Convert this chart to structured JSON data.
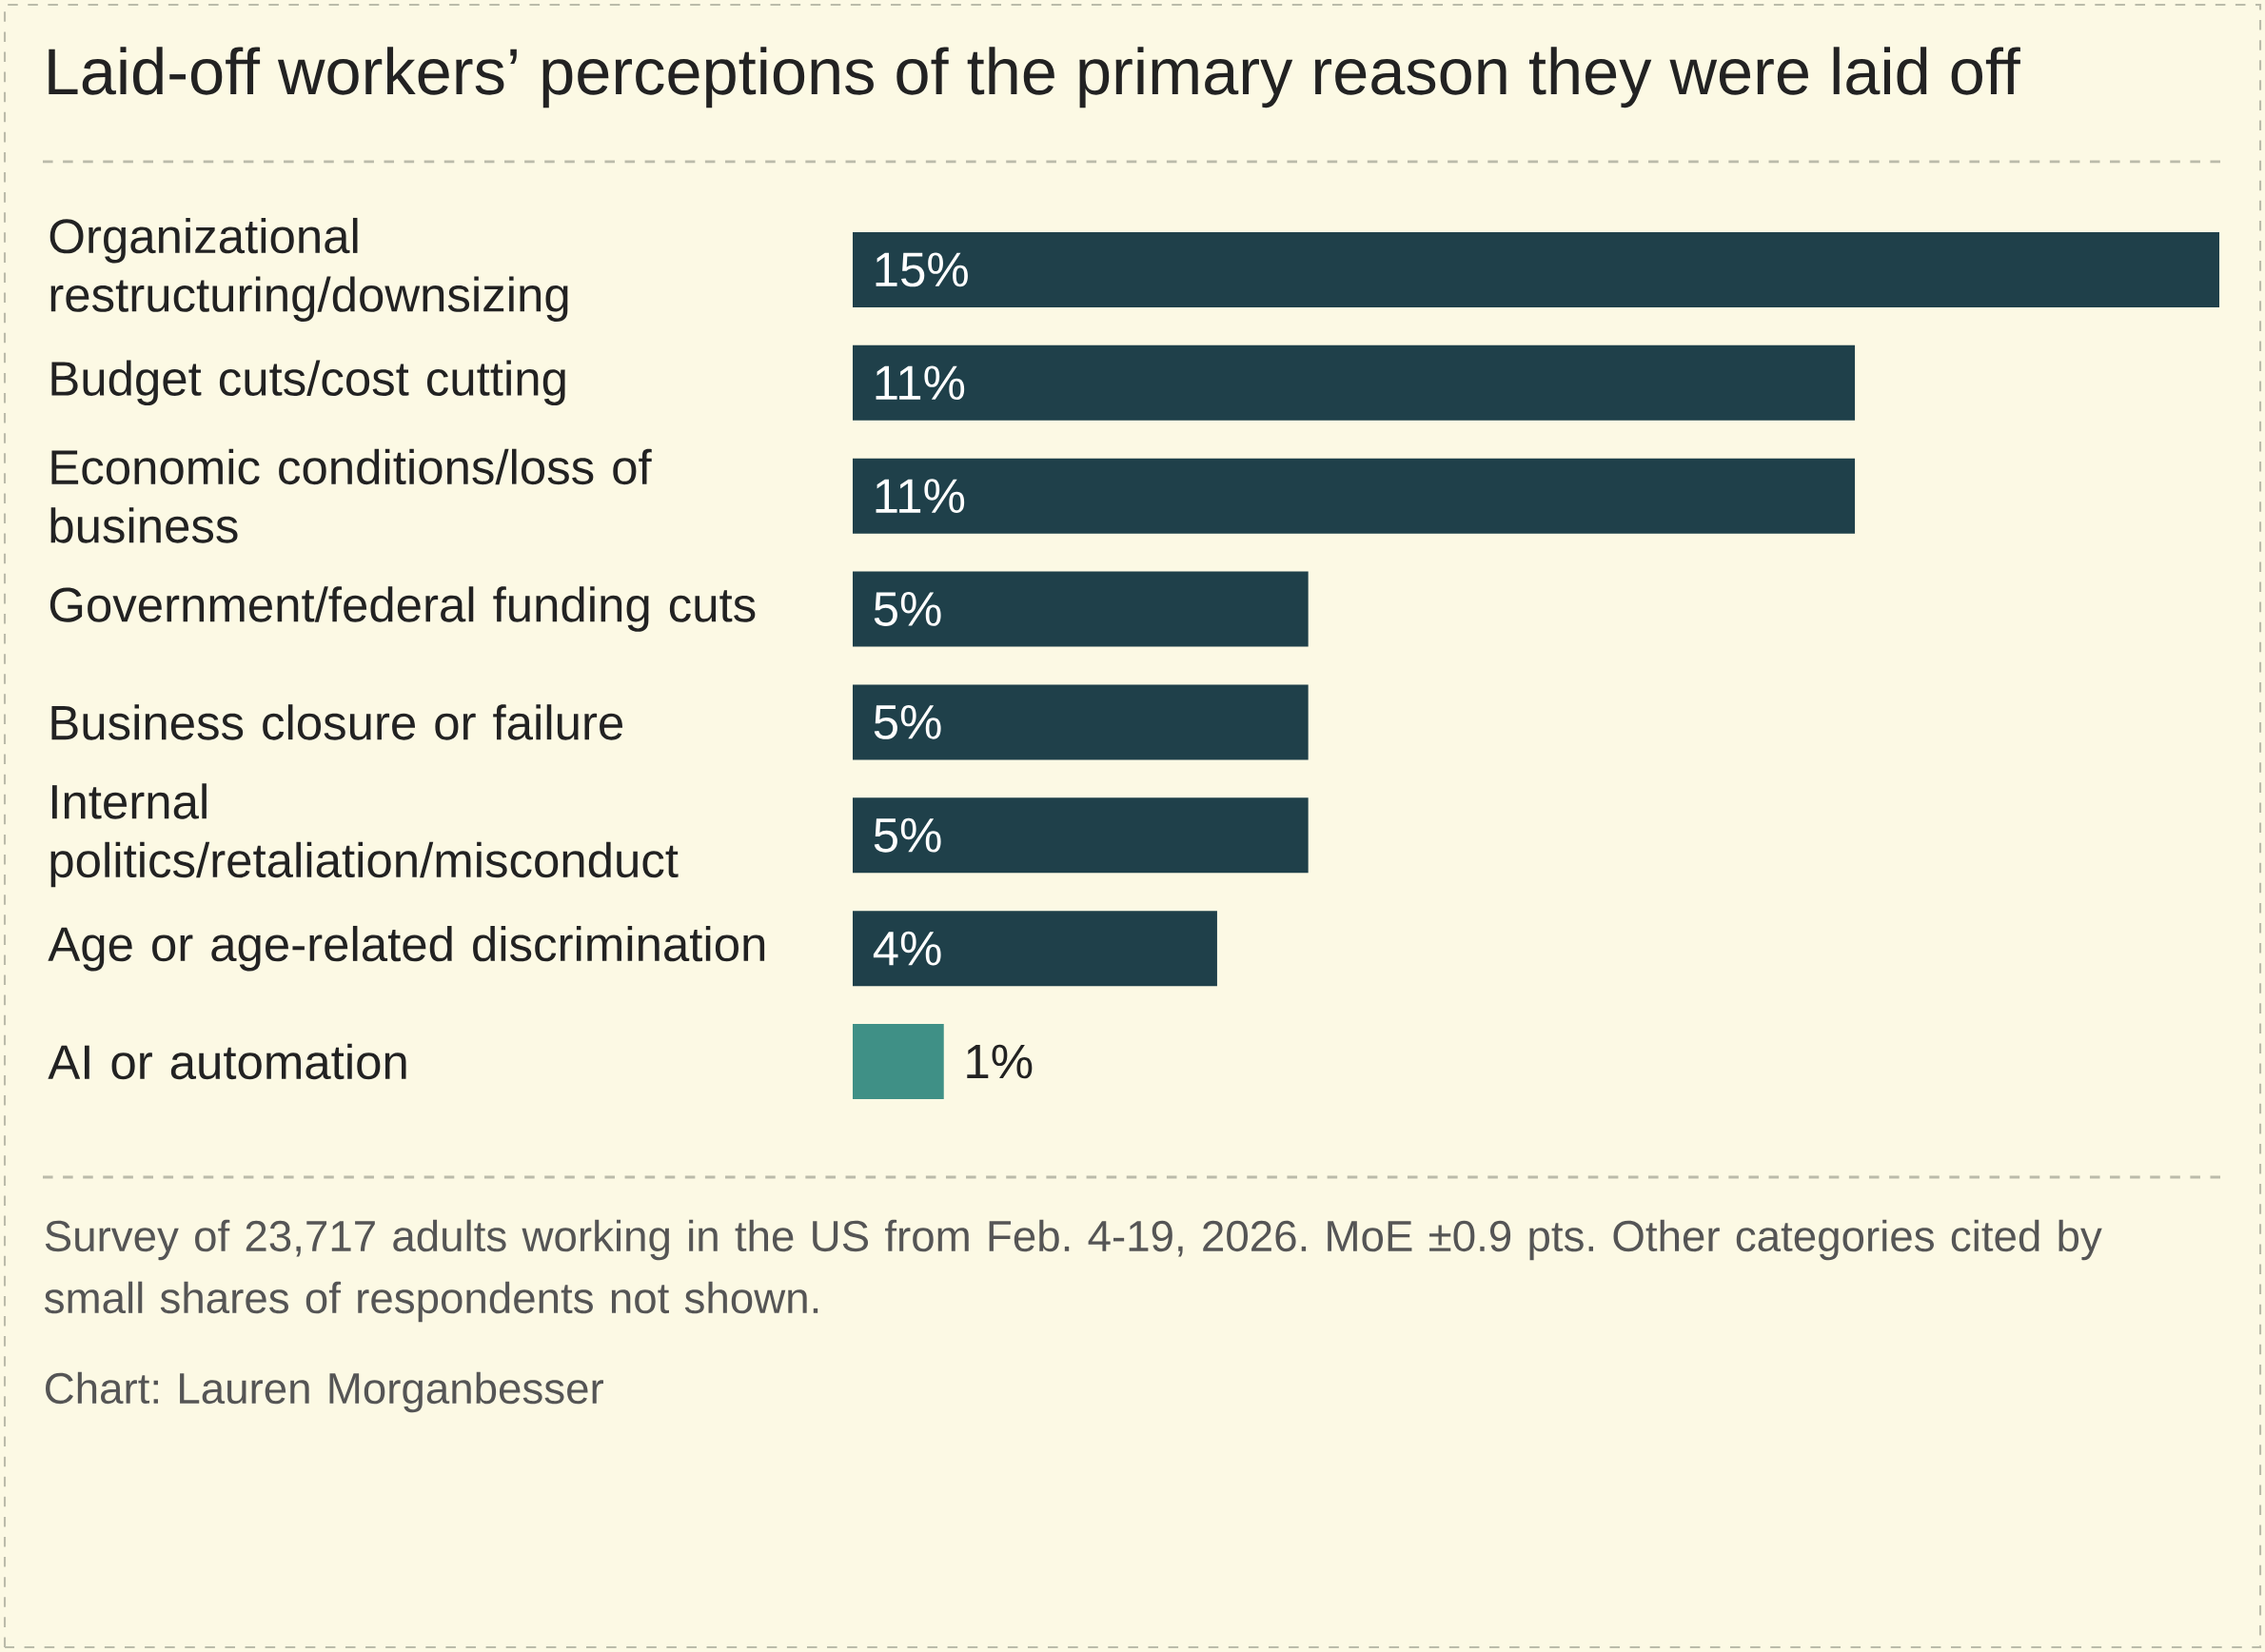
{
  "chart_data": {
    "type": "bar",
    "orientation": "horizontal",
    "title": "Laid-off workers’ perceptions of the primary reason they were laid off",
    "categories": [
      "Organizational restructuring/downsizing",
      "Budget cuts/cost cutting",
      "Economic conditions/loss of business",
      "Government/federal funding cuts",
      "Business closure or failure",
      "Internal politics/retaliation/misconduct",
      "Age or age-related discrimination",
      "AI or automation"
    ],
    "values": [
      15,
      11,
      11,
      5,
      5,
      5,
      4,
      1
    ],
    "value_labels": [
      "15%",
      "11%",
      "11%",
      "5%",
      "5%",
      "5%",
      "4%",
      "1%"
    ],
    "colors": [
      "#1f404a",
      "#1f404a",
      "#1f404a",
      "#1f404a",
      "#1f404a",
      "#1f404a",
      "#1f404a",
      "#3f9086"
    ],
    "xlim": [
      0,
      15
    ],
    "tick_labels": "y",
    "annotations": [
      "Survey of 23,717 adults working in the US from Feb. 4-19, 2026. MoE ±0.9 pts. Other categories cited by small shares of respondents not shown.",
      "Chart: Lauren Morganbesser"
    ]
  }
}
